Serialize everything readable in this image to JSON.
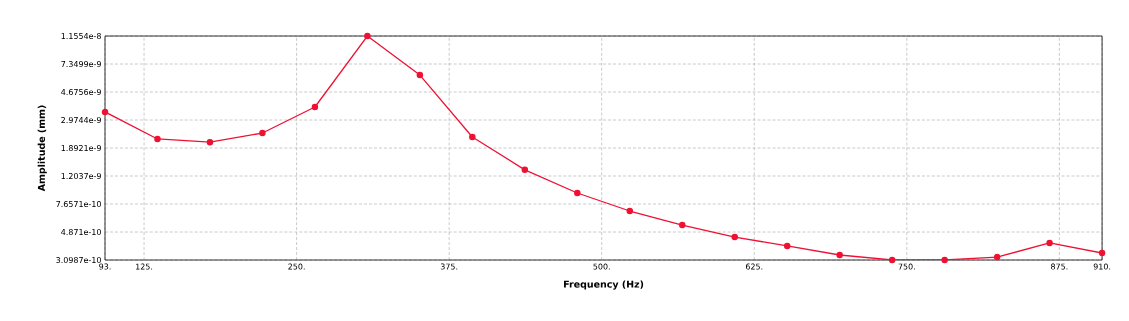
{
  "chart_data": {
    "type": "line",
    "xlabel": "Frequency (Hz)",
    "ylabel": "Amplitude (mm)",
    "x": [
      93,
      136,
      179,
      222,
      265,
      308,
      351,
      394,
      437,
      480,
      523,
      566,
      609,
      652,
      695,
      738,
      781,
      824,
      867,
      910
    ],
    "series": [
      {
        "color": "#ee1133",
        "values": [
          3.39e-09,
          2.19e-09,
          2.08e-09,
          2.41e-09,
          3.67e-09,
          1.1554e-08,
          6.15e-09,
          2.26e-09,
          1.33e-09,
          9.15e-10,
          6.84e-10,
          5.45e-10,
          4.49e-10,
          3.89e-10,
          3.36e-10,
          3.1e-10,
          3.1e-10,
          3.25e-10,
          4.08e-10,
          3.47e-10
        ]
      }
    ],
    "xlim": [
      93,
      910
    ],
    "xticks": [
      {
        "value": 93,
        "label": "93."
      },
      {
        "value": 125,
        "label": "125."
      },
      {
        "value": 250,
        "label": "250."
      },
      {
        "value": 375,
        "label": "375."
      },
      {
        "value": 500,
        "label": "500."
      },
      {
        "value": 625,
        "label": "625."
      },
      {
        "value": 750,
        "label": "750."
      },
      {
        "value": 875,
        "label": "875."
      },
      {
        "value": 910,
        "label": "910."
      }
    ],
    "ylim": [
      3.0987e-10,
      1.1554e-08
    ],
    "yticks": [
      {
        "value": 3.0987e-10,
        "label": "3.0987e-10"
      },
      {
        "value": 4.871e-10,
        "label": "4.871e-10"
      },
      {
        "value": 7.6571e-10,
        "label": "7.6571e-10"
      },
      {
        "value": 1.2037e-09,
        "label": "1.2037e-9"
      },
      {
        "value": 1.8921e-09,
        "label": "1.8921e-9"
      },
      {
        "value": 2.9744e-09,
        "label": "2.9744e-9"
      },
      {
        "value": 4.6756e-09,
        "label": "4.6756e-9"
      },
      {
        "value": 7.3499e-09,
        "label": "7.3499e-9"
      },
      {
        "value": 1.1554e-08,
        "label": "1.1554e-8"
      }
    ],
    "log": "y",
    "grid": true,
    "marker": "circle",
    "line_style": "solid"
  }
}
